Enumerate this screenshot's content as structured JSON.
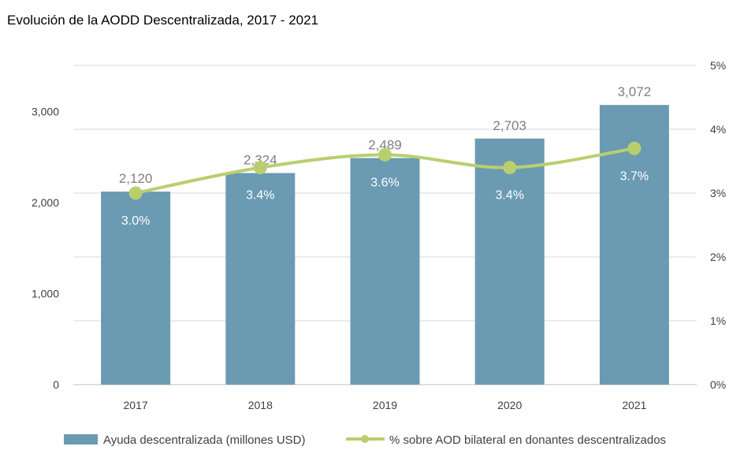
{
  "chart_data": {
    "type": "bar",
    "title": "Evolución de la AODD Descentralizada, 2017 - 2021",
    "categories": [
      "2017",
      "2018",
      "2019",
      "2020",
      "2021"
    ],
    "series": [
      {
        "name": "Ayuda descentralizada (millones USD)",
        "type": "bar",
        "axis": "left",
        "color": "#6b9ab3",
        "values": [
          2120,
          2324,
          2489,
          2703,
          3072
        ],
        "labels": [
          "2,120",
          "2,324",
          "2,489",
          "2,703",
          "3,072"
        ]
      },
      {
        "name": "% sobre AOD bilateral en donantes descentralizados",
        "type": "line",
        "axis": "right",
        "color": "#b9cf6d",
        "values": [
          3.0,
          3.4,
          3.6,
          3.4,
          3.7
        ],
        "labels": [
          "3.0%",
          "3.4%",
          "3.6%",
          "3.4%",
          "3.7%"
        ]
      }
    ],
    "yleft": {
      "ylim": [
        0,
        3500
      ],
      "ticks": [
        0,
        1000,
        2000,
        3000
      ],
      "tick_labels": [
        "0",
        "1,000",
        "2,000",
        "3,000"
      ]
    },
    "yright": {
      "ylim": [
        0,
        5
      ],
      "ticks": [
        0,
        1,
        2,
        3,
        4,
        5
      ],
      "tick_labels": [
        "0%",
        "1%",
        "2%",
        "3%",
        "4%",
        "5%"
      ]
    },
    "grid": true,
    "legend": "bottom"
  }
}
